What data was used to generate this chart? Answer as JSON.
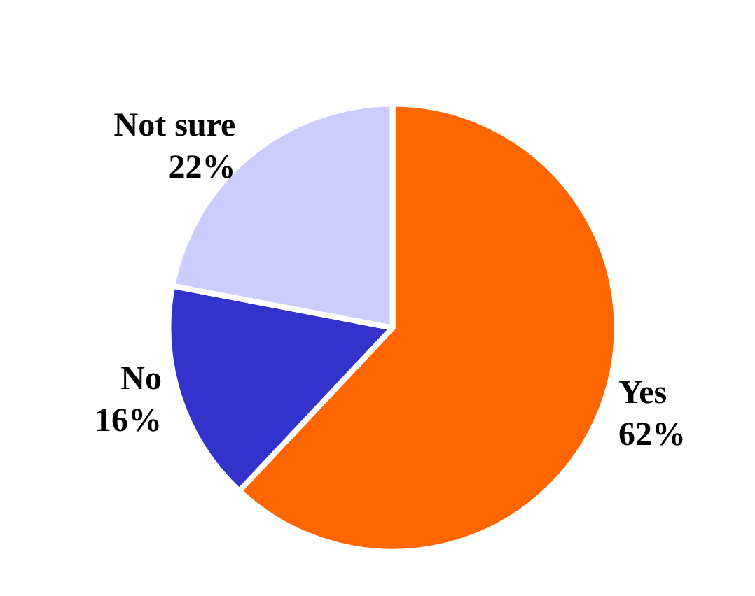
{
  "chart_data": {
    "type": "pie",
    "categories": [
      "Yes",
      "No",
      "Not sure"
    ],
    "values": [
      62,
      16,
      22
    ],
    "value_labels": [
      "62%",
      "16%",
      "22%"
    ],
    "colors": [
      "#ff6600",
      "#3333cc",
      "#ccccff"
    ],
    "legend": false
  }
}
